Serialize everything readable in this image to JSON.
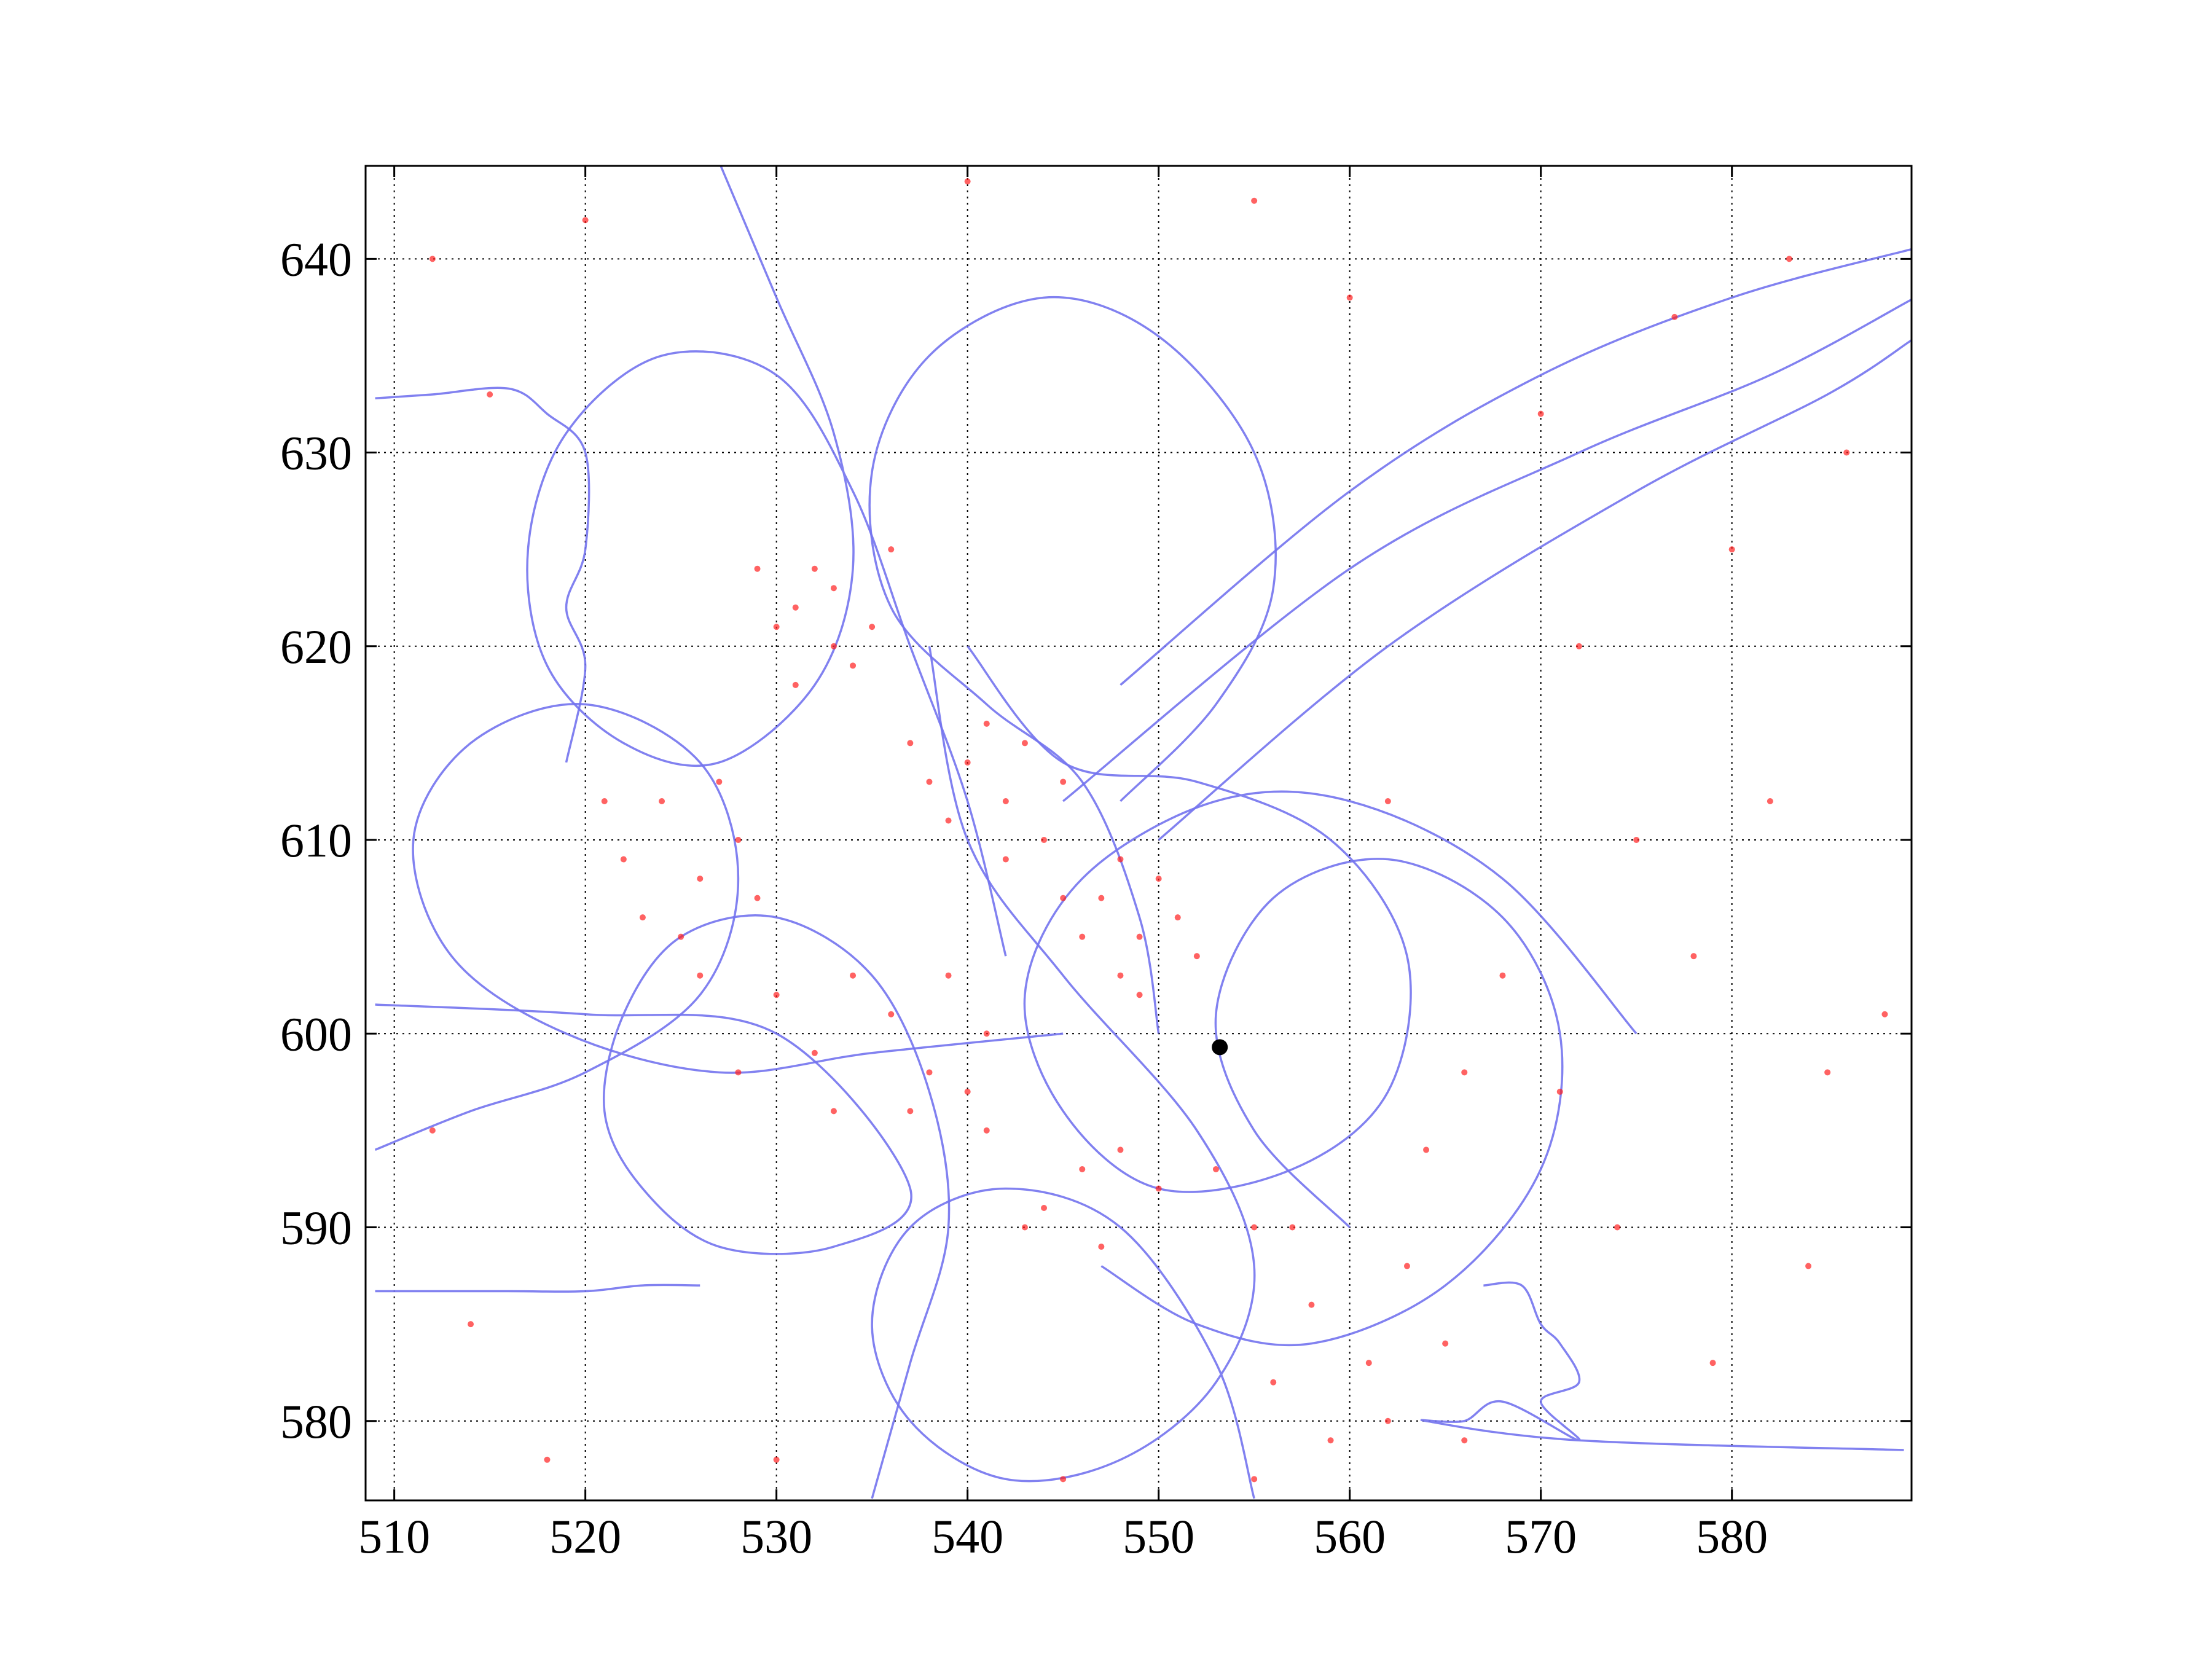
{
  "chart_data": {
    "type": "scatter",
    "xlim": [
      508.5,
      589.4
    ],
    "ylim": [
      575.9,
      644.8
    ],
    "xticks": [
      510,
      520,
      530,
      540,
      550,
      560,
      570,
      580
    ],
    "yticks": [
      580,
      590,
      600,
      610,
      620,
      630,
      640
    ],
    "grid": true,
    "series": [
      {
        "type": "line",
        "color": "#7373ee",
        "x": [
          535,
          537,
          539,
          538,
          535,
          530,
          525,
          522,
          521,
          523,
          527,
          533,
          537,
          530,
          520,
          509
        ],
        "y": [
          576,
          583,
          590,
          597,
          603,
          606,
          605,
          601,
          596,
          592,
          589,
          589,
          592,
          600,
          601,
          601.5
        ]
      },
      {
        "type": "line",
        "color": "#7373ee",
        "x": [
          527,
          530,
          533,
          534,
          532,
          527,
          522,
          518,
          517,
          519,
          524,
          530,
          534,
          537,
          540,
          542
        ],
        "y": [
          645,
          638,
          631,
          624,
          618,
          614,
          615,
          619,
          625,
          631,
          635,
          634,
          628,
          620,
          612,
          604
        ]
      },
      {
        "type": "line",
        "color": "#7373ee",
        "x": [
          540,
          545,
          552,
          559,
          563,
          562,
          557,
          550,
          545,
          543,
          546,
          553,
          560,
          568,
          575
        ],
        "y": [
          620,
          614,
          613,
          610,
          604,
          597,
          593,
          592,
          596,
          602,
          608,
          612,
          612,
          608,
          600
        ]
      },
      {
        "type": "line",
        "color": "#7373ee",
        "x": [
          555,
          553,
          548,
          542,
          537,
          535,
          537,
          542,
          548,
          553,
          555,
          552,
          545,
          540,
          538
        ],
        "y": [
          576,
          583,
          590,
          592,
          590,
          585,
          580,
          577,
          578,
          582,
          588,
          595,
          603,
          610,
          620
        ]
      },
      {
        "type": "line",
        "color": "#7373ee",
        "x": [
          509,
          514,
          520,
          526,
          528,
          526,
          520,
          514,
          511,
          513,
          519,
          527,
          535,
          545
        ],
        "y": [
          594,
          596,
          598,
          602,
          608,
          614,
          617,
          615,
          610,
          604,
          600,
          598,
          599,
          600
        ]
      },
      {
        "type": "line",
        "color": "#7373ee",
        "x": [
          548,
          553,
          556,
          555,
          550,
          544,
          538,
          535,
          536,
          541,
          546,
          549,
          550
        ],
        "y": [
          612,
          617,
          623,
          630,
          636,
          638,
          635,
          629,
          622,
          617,
          613,
          606,
          600
        ]
      },
      {
        "type": "line",
        "color": "#7373ee",
        "x": [
          547,
          552,
          558,
          565,
          570,
          571,
          568,
          562,
          556,
          553,
          555,
          560
        ],
        "y": [
          588,
          585,
          584,
          587,
          593,
          600,
          606,
          609,
          607,
          601,
          595,
          590
        ]
      },
      {
        "type": "line",
        "color": "#7373ee",
        "x": [
          548,
          560,
          570,
          580,
          589.4
        ],
        "y": [
          618,
          628,
          634,
          638,
          640.5
        ]
      },
      {
        "type": "line",
        "color": "#7373ee",
        "x": [
          545,
          560,
          572,
          582,
          589.4
        ],
        "y": [
          612,
          624,
          630,
          634,
          637.9
        ]
      },
      {
        "type": "line",
        "color": "#7373ee",
        "x": [
          550,
          562,
          575,
          585,
          589.4
        ],
        "y": [
          610,
          620,
          628,
          633,
          635.8
        ]
      },
      {
        "type": "line",
        "color": "#7373ee",
        "x": [
          509,
          512,
          516,
          518,
          520,
          520,
          519,
          520,
          519
        ],
        "y": [
          632.8,
          633,
          633.3,
          632,
          630,
          625,
          622,
          619,
          614
        ]
      },
      {
        "type": "line",
        "color": "#7373ee",
        "x": [
          509,
          516,
          520,
          523,
          526
        ],
        "y": [
          586.7,
          586.7,
          586.7,
          587,
          587
        ]
      },
      {
        "type": "line",
        "color": "#7373ee",
        "x": [
          567,
          569,
          570,
          571,
          572,
          570,
          572,
          568,
          566,
          564,
          572,
          589
        ],
        "y": [
          587,
          587,
          585,
          584,
          582,
          581,
          579,
          581,
          580,
          580,
          579,
          578.5
        ]
      },
      {
        "type": "scatter",
        "color": "#ff2020",
        "x": [
          531,
          533,
          532,
          534,
          530,
          533,
          535,
          531,
          529,
          536,
          547,
          549,
          548,
          550,
          546,
          551,
          548,
          545,
          549,
          552,
          540,
          542,
          543,
          539,
          544,
          541,
          538,
          545,
          542,
          537,
          524,
          526,
          523,
          528,
          522,
          527,
          525,
          529,
          521,
          526,
          544,
          546,
          543,
          548,
          541,
          547,
          550,
          553,
          555,
          540,
          558,
          561,
          563,
          556,
          559,
          562,
          565,
          557,
          564,
          566,
          532,
          536,
          534,
          538,
          530,
          537,
          533,
          539,
          528,
          541,
          575,
          578,
          582,
          585,
          572,
          580,
          586,
          570,
          577,
          583,
          574,
          579,
          584,
          588,
          571,
          512,
          515,
          520,
          540,
          555,
          560,
          512,
          514,
          518,
          530,
          545,
          555,
          566,
          568,
          562
        ],
        "y": [
          622,
          620,
          624,
          619,
          621,
          623,
          621,
          618,
          624,
          625,
          607,
          605,
          603,
          608,
          605,
          606,
          609,
          607,
          602,
          604,
          614,
          612,
          615,
          611,
          610,
          616,
          613,
          613,
          609,
          615,
          612,
          608,
          606,
          610,
          609,
          613,
          605,
          607,
          612,
          603,
          591,
          593,
          590,
          594,
          595,
          589,
          592,
          593,
          590,
          597,
          586,
          583,
          588,
          582,
          579,
          580,
          584,
          590,
          594,
          598,
          599,
          601,
          603,
          598,
          602,
          596,
          596,
          603,
          598,
          600,
          610,
          604,
          612,
          598,
          620,
          625,
          630,
          632,
          637,
          640,
          590,
          583,
          588,
          601,
          597,
          640,
          633,
          642,
          644,
          643,
          638,
          595,
          585,
          578,
          578,
          577,
          577,
          579,
          603,
          612
        ]
      },
      {
        "type": "scatter",
        "color": "#000000",
        "x": [
          553.2
        ],
        "y": [
          599.3
        ]
      }
    ]
  }
}
